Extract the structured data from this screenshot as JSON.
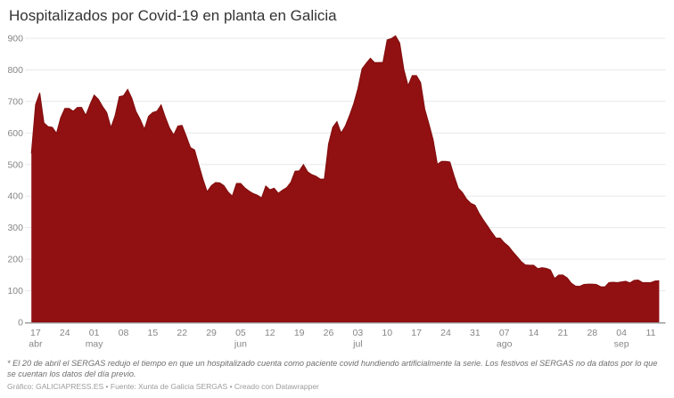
{
  "title": "Hospitalizados por Covid-19 en planta en Galicia",
  "footnote": {
    "line1": "* El 20 de abril el SERGAS redujo el tiempo en que un hospitalizado cuenta como paciente covid hundiendo artificialmente la serie. Los festivos el SERGAS no da datos por lo que",
    "line2": "se cuentan los datos del día previo."
  },
  "credit": "Gráfico: GALICIAPRESS.ES • Fuente: Xunta de Galicia SERGAS • Creado con Datawrapper",
  "chart_data": {
    "type": "area",
    "title": "Hospitalizados por Covid-19 en planta en Galicia",
    "fill_color": "#911011",
    "line_color": "#820e0e",
    "grid_color": "#e8e8e8",
    "axis_color": "#8a8a8a",
    "label_color": "#868686",
    "ylim": [
      0,
      900
    ],
    "grid": true,
    "y_ticks": [
      0,
      100,
      200,
      300,
      400,
      500,
      600,
      700,
      800,
      900
    ],
    "x_ticks": [
      {
        "day": 1,
        "label": "17",
        "month": "abr"
      },
      {
        "day": 8,
        "label": "24",
        "month": ""
      },
      {
        "day": 15,
        "label": "01",
        "month": "may"
      },
      {
        "day": 22,
        "label": "08",
        "month": ""
      },
      {
        "day": 29,
        "label": "15",
        "month": ""
      },
      {
        "day": 36,
        "label": "22",
        "month": ""
      },
      {
        "day": 43,
        "label": "29",
        "month": ""
      },
      {
        "day": 50,
        "label": "05",
        "month": "jun"
      },
      {
        "day": 57,
        "label": "12",
        "month": ""
      },
      {
        "day": 64,
        "label": "19",
        "month": ""
      },
      {
        "day": 71,
        "label": "26",
        "month": ""
      },
      {
        "day": 78,
        "label": "03",
        "month": "jul"
      },
      {
        "day": 85,
        "label": "10",
        "month": ""
      },
      {
        "day": 92,
        "label": "17",
        "month": ""
      },
      {
        "day": 99,
        "label": "24",
        "month": ""
      },
      {
        "day": 106,
        "label": "31",
        "month": ""
      },
      {
        "day": 113,
        "label": "07",
        "month": "ago"
      },
      {
        "day": 120,
        "label": "14",
        "month": ""
      },
      {
        "day": 127,
        "label": "21",
        "month": ""
      },
      {
        "day": 134,
        "label": "28",
        "month": ""
      },
      {
        "day": 141,
        "label": "04",
        "month": "sep"
      },
      {
        "day": 148,
        "label": "11",
        "month": ""
      }
    ],
    "values": [
      535,
      690,
      727,
      632,
      620,
      618,
      599,
      648,
      678,
      678,
      669,
      681,
      681,
      656,
      690,
      720,
      707,
      684,
      665,
      617,
      655,
      715,
      718,
      738,
      710,
      668,
      643,
      612,
      653,
      665,
      669,
      689,
      650,
      616,
      594,
      622,
      624,
      590,
      554,
      546,
      499,
      453,
      414,
      433,
      443,
      442,
      433,
      413,
      400,
      440,
      440,
      426,
      416,
      408,
      403,
      394,
      432,
      420,
      425,
      409,
      419,
      427,
      444,
      479,
      480,
      500,
      477,
      468,
      463,
      454,
      454,
      565,
      618,
      636,
      600,
      622,
      655,
      692,
      740,
      803,
      821,
      837,
      823,
      823,
      824,
      895,
      899,
      908,
      885,
      801,
      750,
      782,
      782,
      760,
      675,
      628,
      578,
      501,
      510,
      510,
      508,
      464,
      425,
      411,
      390,
      377,
      371,
      345,
      324,
      305,
      285,
      267,
      267,
      252,
      241,
      224,
      209,
      193,
      182,
      181,
      181,
      170,
      173,
      171,
      166,
      139,
      150,
      150,
      141,
      124,
      115,
      114,
      120,
      121,
      121,
      120,
      113,
      112,
      126,
      127,
      126,
      128,
      130,
      125,
      133,
      134,
      126,
      126,
      126,
      131,
      132
    ]
  }
}
